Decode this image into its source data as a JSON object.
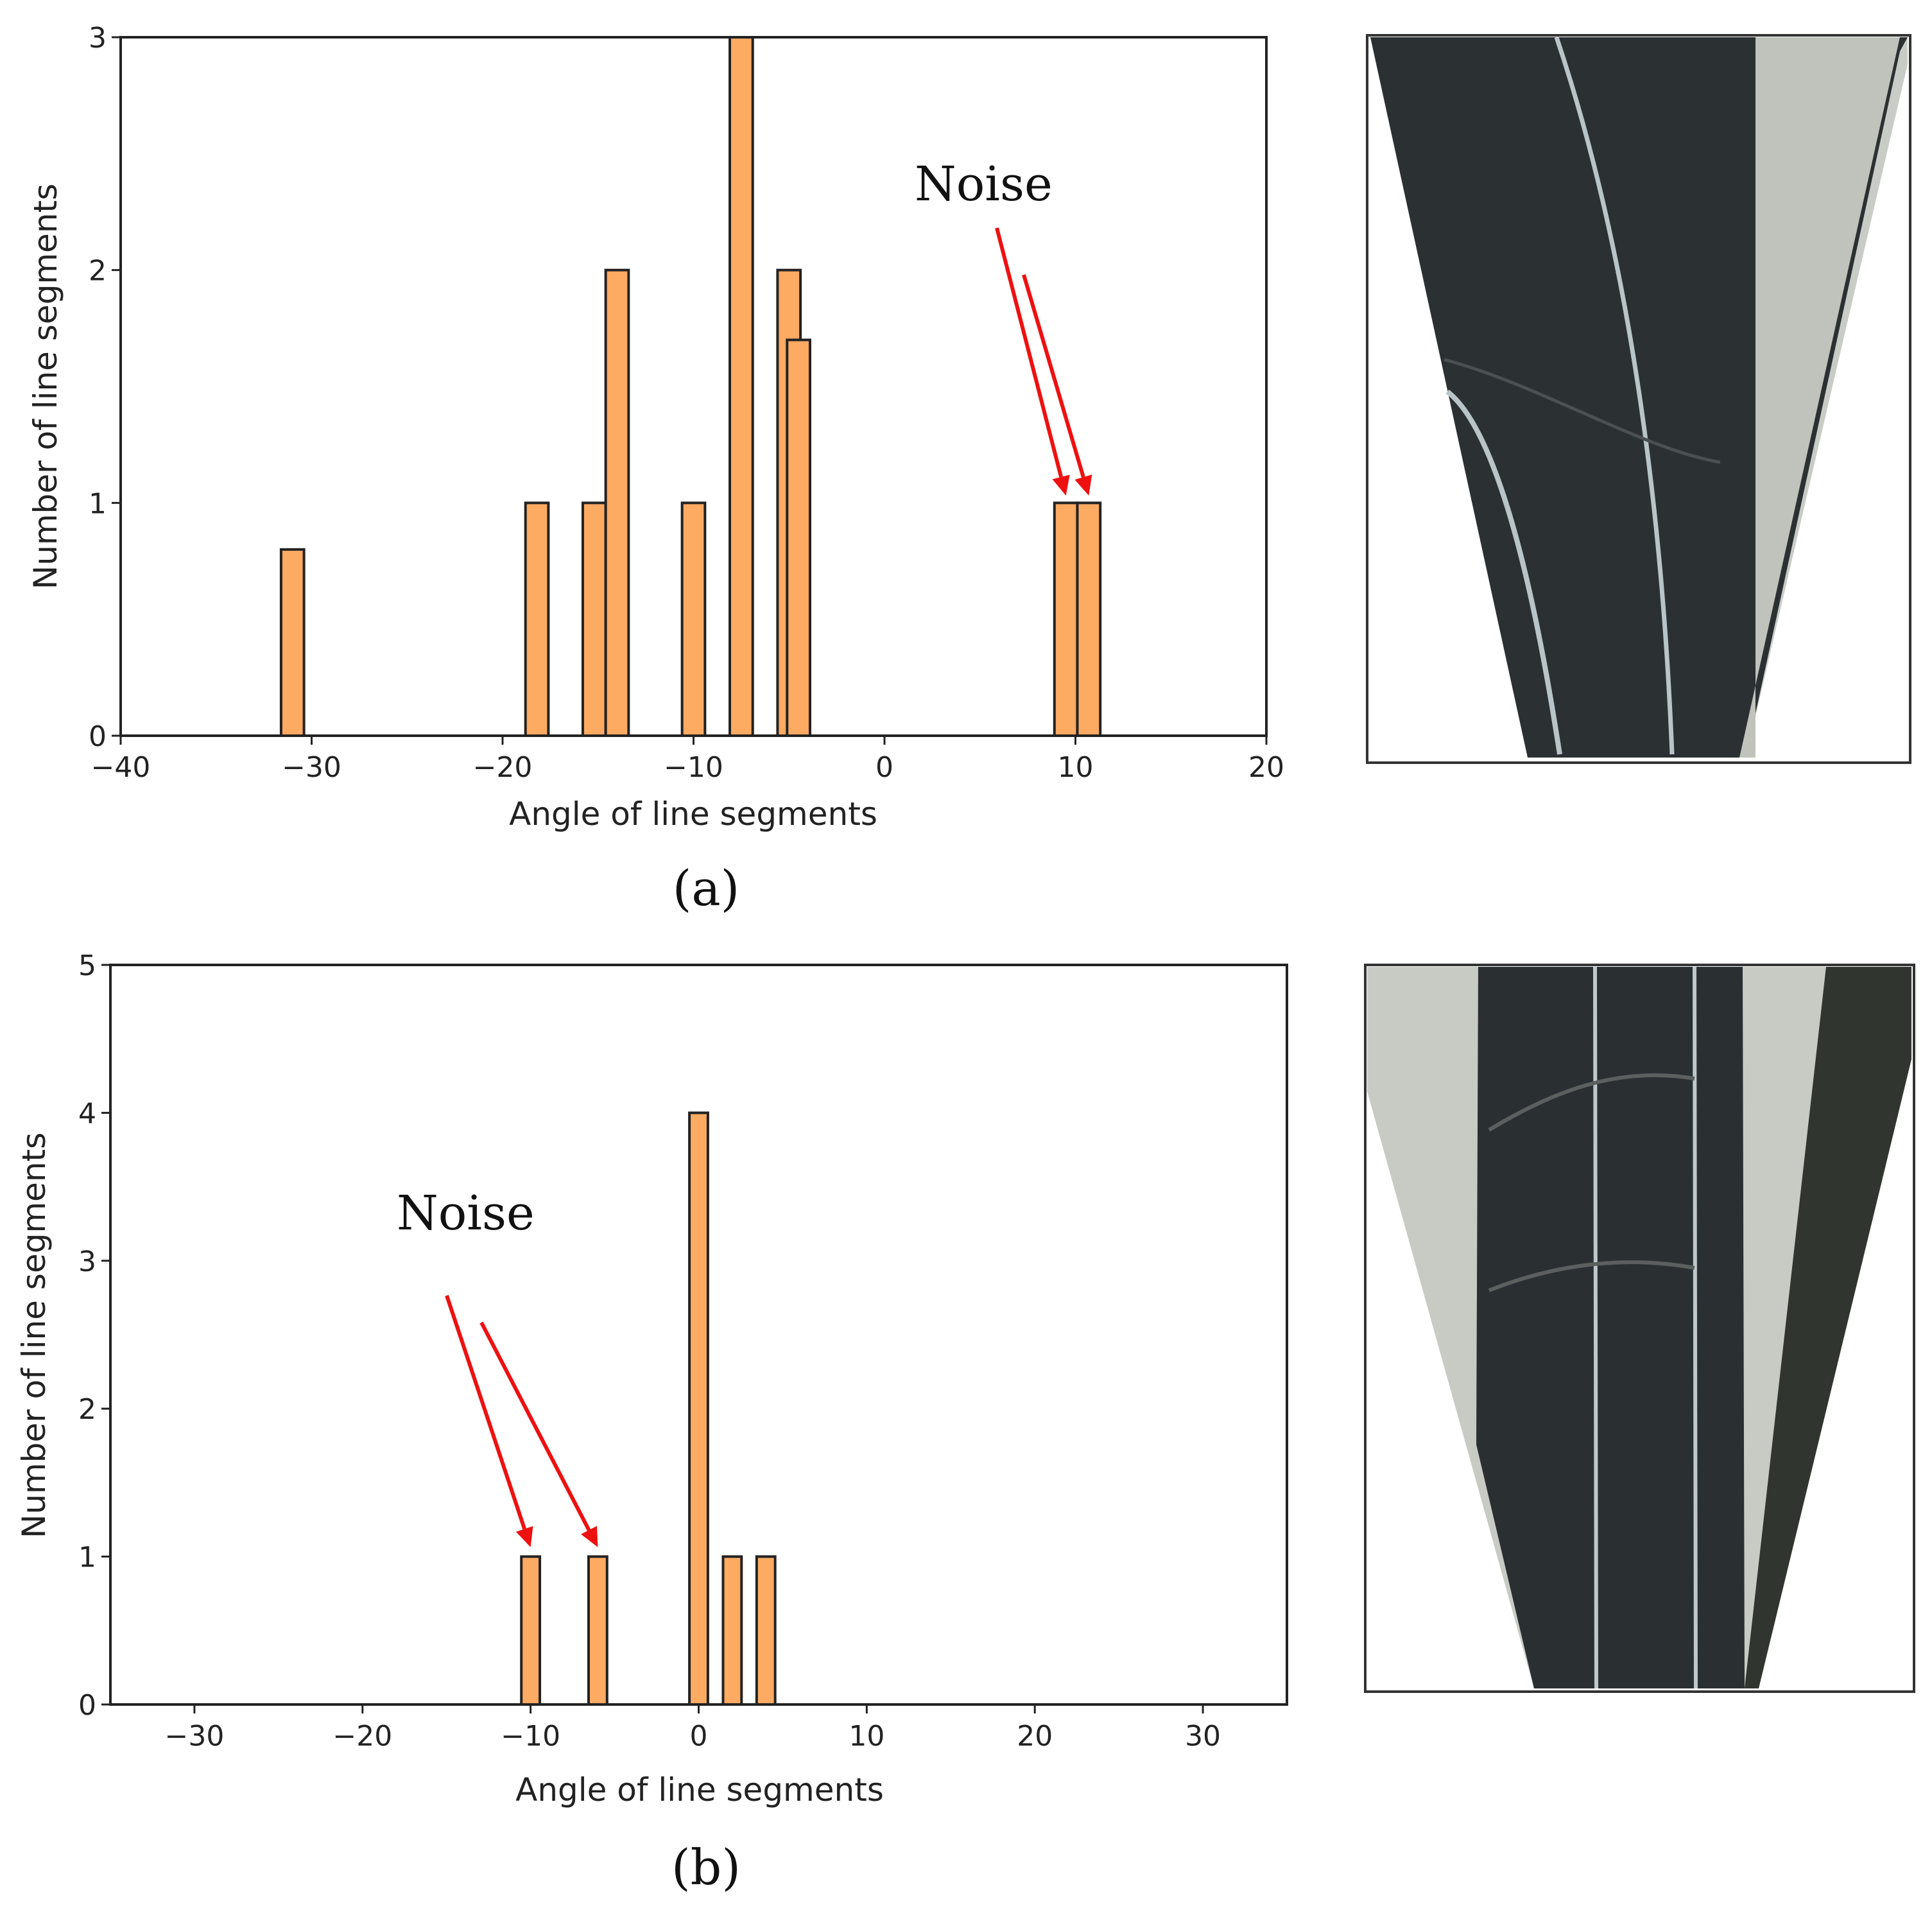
{
  "chart_data": [
    {
      "type": "bar",
      "panel_caption": "(a)",
      "xlabel": "Angle of line segments",
      "ylabel": "Number of line segments",
      "xlim": [
        -40,
        20
      ],
      "ylim": [
        0,
        3
      ],
      "xticks": [
        -40,
        -30,
        -20,
        -10,
        0,
        10,
        20
      ],
      "yticks": [
        0,
        1,
        2,
        3
      ],
      "bar_width": 1.2,
      "bars": [
        {
          "x": -31.0,
          "value": 0.8
        },
        {
          "x": -18.2,
          "value": 1.0
        },
        {
          "x": -15.2,
          "value": 1.0
        },
        {
          "x": -14.0,
          "value": 2.0
        },
        {
          "x": -10.0,
          "value": 1.0
        },
        {
          "x": -7.5,
          "value": 3.0
        },
        {
          "x": -5.0,
          "value": 2.0
        },
        {
          "x": -4.5,
          "value": 1.7
        },
        {
          "x": 9.5,
          "value": 1.0
        },
        {
          "x": 10.7,
          "value": 1.0
        }
      ],
      "annotation": {
        "text": "Noise",
        "arrow_targets_x": [
          9.5,
          10.7
        ]
      },
      "grid": false,
      "bar_color": "#fdaa63",
      "edge_color": "#222222",
      "arrow_color": "#ee1111"
    },
    {
      "type": "bar",
      "panel_caption": "(b)",
      "xlabel": "Angle of line segments",
      "ylabel": "Number of line segments",
      "xlim": [
        -35,
        35
      ],
      "ylim": [
        0,
        5
      ],
      "xticks": [
        -30,
        -20,
        -10,
        0,
        10,
        20,
        30
      ],
      "yticks": [
        0,
        1,
        2,
        3,
        4,
        5
      ],
      "bar_width": 1.1,
      "bars": [
        {
          "x": -10.0,
          "value": 1.0
        },
        {
          "x": -6.0,
          "value": 1.0
        },
        {
          "x": 0.0,
          "value": 4.0
        },
        {
          "x": 2.0,
          "value": 1.0
        },
        {
          "x": 4.0,
          "value": 1.0
        }
      ],
      "annotation": {
        "text": "Noise",
        "arrow_targets_x": [
          -10.0,
          -6.0
        ]
      },
      "grid": false,
      "bar_color": "#fdaa63",
      "edge_color": "#222222",
      "arrow_color": "#ee1111"
    }
  ],
  "photos": {
    "a_description_colors": {
      "road": "#2b3033",
      "verge": "#c8ccc6",
      "line": "#b9c4c8"
    },
    "b_description_colors": {
      "road": "#2a2f32",
      "verge": "#c7cbc4",
      "line": "#bfc8cc"
    }
  }
}
